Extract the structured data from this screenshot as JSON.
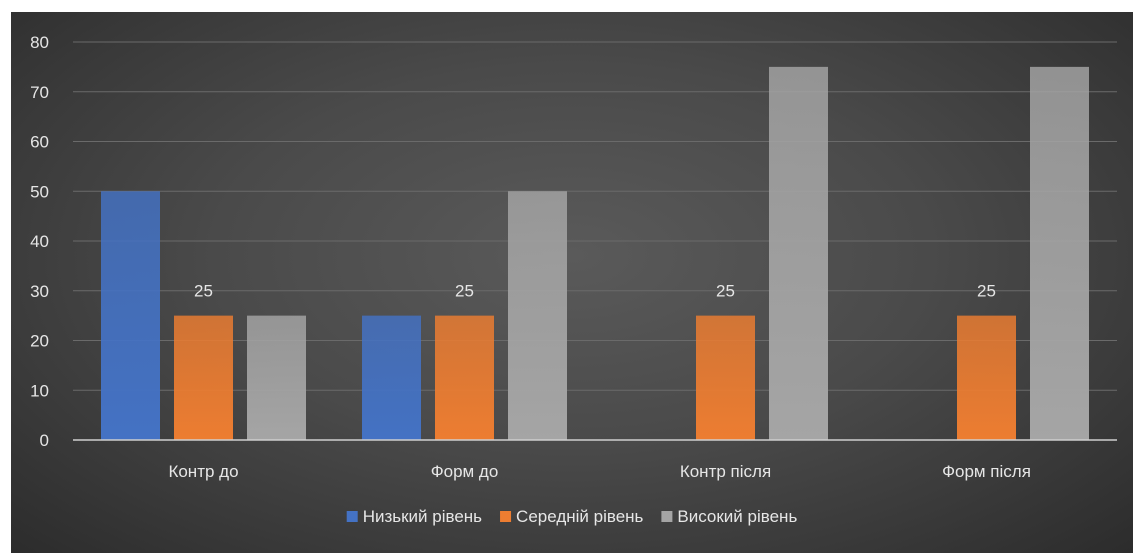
{
  "chart_data": {
    "type": "bar",
    "categories": [
      "Контр до",
      "Форм до",
      "Контр після",
      "Форм після"
    ],
    "series": [
      {
        "name": "Низький рівень",
        "values": [
          50,
          25,
          0,
          0
        ],
        "color": "#4472c4"
      },
      {
        "name": "Середній рівень",
        "values": [
          25,
          25,
          25,
          25
        ],
        "color": "#ed7d31"
      },
      {
        "name": "Високий рівень",
        "values": [
          25,
          50,
          75,
          75
        ],
        "color": "#a5a5a5"
      }
    ],
    "data_labels": [
      {
        "series": 1,
        "category": 0,
        "text": "25"
      },
      {
        "series": 1,
        "category": 1,
        "text": "25"
      },
      {
        "series": 1,
        "category": 2,
        "text": "25"
      },
      {
        "series": 1,
        "category": 3,
        "text": "25"
      }
    ],
    "ylim": [
      0,
      80
    ],
    "yticks": [
      "0",
      "10",
      "20",
      "30",
      "40",
      "50",
      "60",
      "70",
      "80"
    ],
    "grid": true,
    "legend_position": "bottom"
  }
}
